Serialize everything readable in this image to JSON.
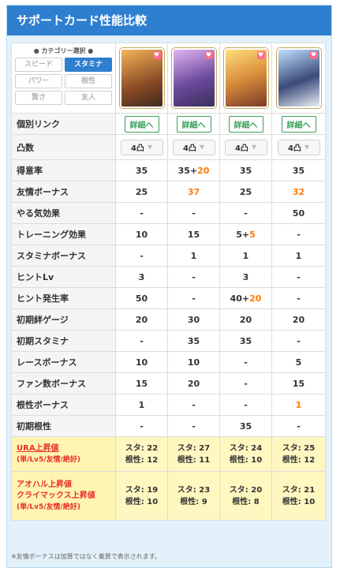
{
  "header": {
    "title": "サポートカード性能比較"
  },
  "selector": {
    "title": "● カテゴリー選択 ●",
    "items": [
      {
        "label": "スピード",
        "active": false
      },
      {
        "label": "スタミナ",
        "active": true
      },
      {
        "label": "パワー",
        "active": false
      },
      {
        "label": "根性",
        "active": false
      },
      {
        "label": "賢さ",
        "active": false
      },
      {
        "label": "友人",
        "active": false
      }
    ]
  },
  "cards": [
    {
      "icon": "support-card-1-image"
    },
    {
      "icon": "support-card-2-image"
    },
    {
      "icon": "support-card-3-image"
    },
    {
      "icon": "support-card-4-image"
    }
  ],
  "link_row": {
    "label": "個別リンク",
    "button": "詳細へ"
  },
  "limit_row": {
    "label": "凸数",
    "value": "4凸"
  },
  "rows": [
    {
      "label": "得意率",
      "cells": [
        [
          "35",
          ""
        ],
        [
          "35+",
          "20"
        ],
        [
          "35",
          ""
        ],
        [
          "35",
          ""
        ]
      ]
    },
    {
      "label": "友情ボーナス",
      "cells": [
        [
          "25",
          ""
        ],
        [
          "",
          "37"
        ],
        [
          "25",
          ""
        ],
        [
          "",
          "32"
        ]
      ]
    },
    {
      "label": "やる気効果",
      "cells": [
        [
          "-",
          ""
        ],
        [
          "-",
          ""
        ],
        [
          "-",
          ""
        ],
        [
          "50",
          ""
        ]
      ]
    },
    {
      "label": "トレーニング効果",
      "cells": [
        [
          "10",
          ""
        ],
        [
          "15",
          ""
        ],
        [
          "5+",
          "5"
        ],
        [
          "-",
          ""
        ]
      ]
    },
    {
      "label": "スタミナボーナス",
      "cells": [
        [
          "-",
          ""
        ],
        [
          "1",
          ""
        ],
        [
          "1",
          ""
        ],
        [
          "1",
          ""
        ]
      ]
    },
    {
      "label": "ヒントLv",
      "cells": [
        [
          "3",
          ""
        ],
        [
          "-",
          ""
        ],
        [
          "3",
          ""
        ],
        [
          "-",
          ""
        ]
      ]
    },
    {
      "label": "ヒント発生率",
      "cells": [
        [
          "50",
          ""
        ],
        [
          "-",
          ""
        ],
        [
          "40+",
          "20"
        ],
        [
          "-",
          ""
        ]
      ]
    },
    {
      "label": "初期絆ゲージ",
      "cells": [
        [
          "20",
          ""
        ],
        [
          "30",
          ""
        ],
        [
          "20",
          ""
        ],
        [
          "20",
          ""
        ]
      ]
    },
    {
      "label": "初期スタミナ",
      "cells": [
        [
          "-",
          ""
        ],
        [
          "35",
          ""
        ],
        [
          "35",
          ""
        ],
        [
          "-",
          ""
        ]
      ]
    },
    {
      "label": "レースボーナス",
      "cells": [
        [
          "10",
          ""
        ],
        [
          "10",
          ""
        ],
        [
          "-",
          ""
        ],
        [
          "5",
          ""
        ]
      ]
    },
    {
      "label": "ファン数ボーナス",
      "cells": [
        [
          "15",
          ""
        ],
        [
          "20",
          ""
        ],
        [
          "-",
          ""
        ],
        [
          "15",
          ""
        ]
      ]
    },
    {
      "label": "根性ボーナス",
      "cells": [
        [
          "1",
          ""
        ],
        [
          "-",
          ""
        ],
        [
          "-",
          ""
        ],
        [
          "",
          "1"
        ]
      ]
    },
    {
      "label": "初期根性",
      "cells": [
        [
          "-",
          ""
        ],
        [
          "-",
          ""
        ],
        [
          "35",
          ""
        ],
        [
          "-",
          ""
        ]
      ]
    }
  ],
  "ura_row": {
    "label": "URA上昇値",
    "sub": "(単/Lv5/友情/絶好)",
    "cells": [
      [
        "スタ: 22",
        "根性: 12"
      ],
      [
        "スタ: 27",
        "根性: 11"
      ],
      [
        "スタ: 24",
        "根性: 10"
      ],
      [
        "スタ: 25",
        "根性: 12"
      ]
    ]
  },
  "aoharu_row": {
    "label1": "アオハル上昇値",
    "label2": "クライマックス上昇値",
    "sub": "(単/Lv5/友情/絶好)",
    "cells": [
      [
        "スタ: 19",
        "根性: 10"
      ],
      [
        "スタ: 23",
        "根性: 9"
      ],
      [
        "スタ: 20",
        "根性: 8"
      ],
      [
        "スタ: 21",
        "根性: 10"
      ]
    ]
  },
  "footnote": "※友情ボーナスは加算ではなく乗算で表示されます。",
  "colors": {
    "accent": "#2f7fd0",
    "highlight": "#ff7a00",
    "red": "#e83030",
    "green": "#3aa05a"
  }
}
